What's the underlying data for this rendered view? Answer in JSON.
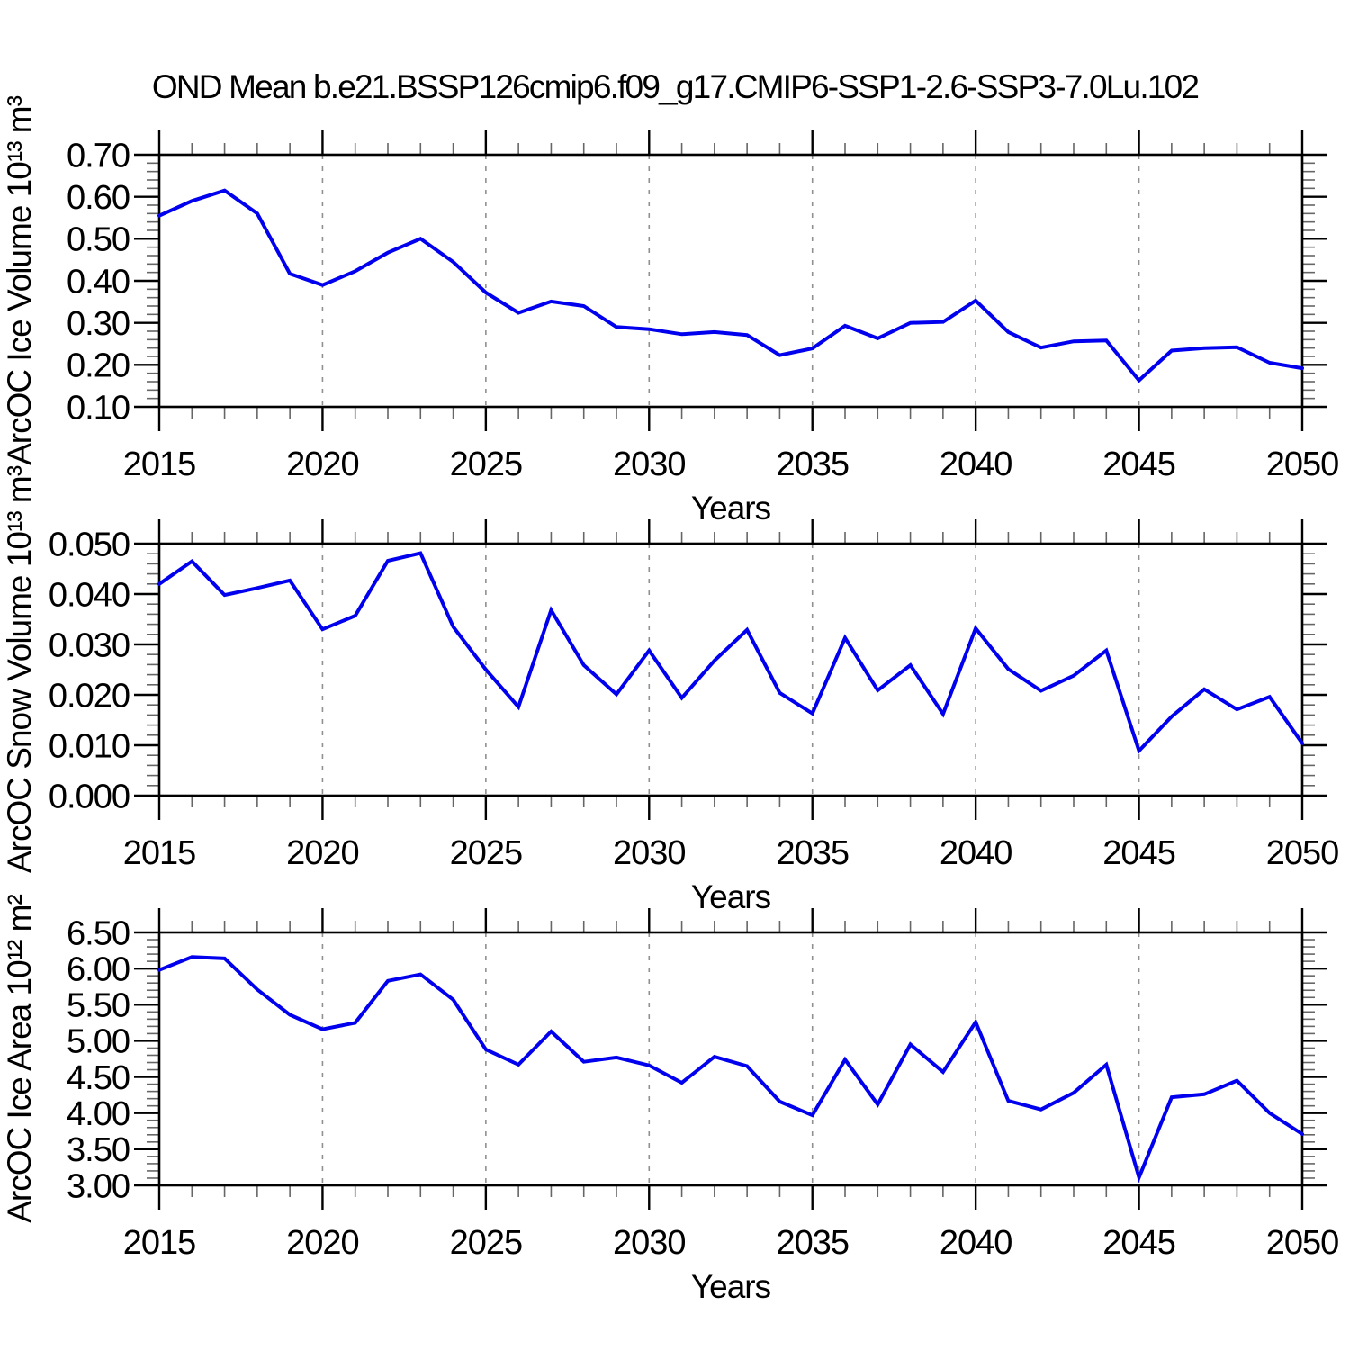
{
  "title": "OND Mean b.e21.BSSP126cmip6.f09_g17.CMIP6-SSP1-2.6-SSP3-7.0Lu.102",
  "colors": {
    "line": "#0000EE",
    "frame": "#000000",
    "major_tick": "#000000",
    "minor_tick": "#666666",
    "grid_dashed": "#909090",
    "background": "#ffffff"
  },
  "x_axis": {
    "label": "Years",
    "tick_labels": [
      "2015",
      "2020",
      "2025",
      "2030",
      "2035",
      "2040",
      "2045",
      "2050"
    ],
    "major_ticks": [
      2015,
      2020,
      2025,
      2030,
      2035,
      2040,
      2045,
      2050
    ],
    "minor_step": 1,
    "grid_years": [
      2020,
      2025,
      2030,
      2035,
      2040,
      2045
    ]
  },
  "charts": [
    {
      "id": "ice-volume-chart",
      "ylabel": "ArcOC Ice Volume 10¹³ m³",
      "ytick_labels": [
        "0.10",
        "0.20",
        "0.30",
        "0.40",
        "0.50",
        "0.60",
        "0.70"
      ],
      "yticks": [
        0.1,
        0.2,
        0.3,
        0.4,
        0.5,
        0.6,
        0.7
      ],
      "ymin": 0.1,
      "ymax": 0.7,
      "y_minor_step": 0.02
    },
    {
      "id": "snow-volume-chart",
      "ylabel": "ArcOC Snow Volume 10¹³ m³",
      "ytick_labels": [
        "0.000",
        "0.010",
        "0.020",
        "0.030",
        "0.040",
        "0.050"
      ],
      "yticks": [
        0.0,
        0.01,
        0.02,
        0.03,
        0.04,
        0.05
      ],
      "ymin": 0.0,
      "ymax": 0.05,
      "y_minor_step": 0.002
    },
    {
      "id": "ice-area-chart",
      "ylabel": "ArcOC Ice Area 10¹² m²",
      "ytick_labels": [
        "3.00",
        "3.50",
        "4.00",
        "4.50",
        "5.00",
        "5.50",
        "6.00",
        "6.50"
      ],
      "yticks": [
        3.0,
        3.5,
        4.0,
        4.5,
        5.0,
        5.5,
        6.0,
        6.5
      ],
      "ymin": 3.0,
      "ymax": 6.5,
      "y_minor_step": 0.1
    }
  ],
  "chart_data": [
    {
      "type": "line",
      "title": "OND Mean b.e21.BSSP126cmip6.f09_g17.CMIP6-SSP1-2.6-SSP3-7.0Lu.102",
      "ylabel": "ArcOC Ice Volume 10¹³ m³",
      "xlabel": "Years",
      "legend": "none",
      "grid": "vertical dashed at 5-year marks",
      "ylim": [
        0.1,
        0.7
      ],
      "xlim": [
        2015,
        2050
      ],
      "x": [
        2015,
        2016,
        2017,
        2018,
        2019,
        2020,
        2021,
        2022,
        2023,
        2024,
        2025,
        2026,
        2027,
        2028,
        2029,
        2030,
        2031,
        2032,
        2033,
        2034,
        2035,
        2036,
        2037,
        2038,
        2039,
        2040,
        2041,
        2042,
        2043,
        2044,
        2045,
        2046,
        2047,
        2048,
        2049,
        2050
      ],
      "values": [
        0.555,
        0.59,
        0.615,
        0.56,
        0.417,
        0.39,
        0.423,
        0.467,
        0.5,
        0.445,
        0.372,
        0.324,
        0.351,
        0.34,
        0.29,
        0.285,
        0.273,
        0.278,
        0.271,
        0.223,
        0.239,
        0.293,
        0.263,
        0.3,
        0.302,
        0.353,
        0.278,
        0.241,
        0.256,
        0.258,
        0.163,
        0.234,
        0.24,
        0.242,
        0.205,
        0.192
      ]
    },
    {
      "type": "line",
      "title": "OND Mean b.e21.BSSP126cmip6.f09_g17.CMIP6-SSP1-2.6-SSP3-7.0Lu.102",
      "ylabel": "ArcOC Snow Volume 10¹³ m³",
      "xlabel": "Years",
      "legend": "none",
      "grid": "vertical dashed at 5-year marks",
      "ylim": [
        0.0,
        0.05
      ],
      "xlim": [
        2015,
        2050
      ],
      "x": [
        2015,
        2016,
        2017,
        2018,
        2019,
        2020,
        2021,
        2022,
        2023,
        2024,
        2025,
        2026,
        2027,
        2028,
        2029,
        2030,
        2031,
        2032,
        2033,
        2034,
        2035,
        2036,
        2037,
        2038,
        2039,
        2040,
        2041,
        2042,
        2043,
        2044,
        2045,
        2046,
        2047,
        2048,
        2049,
        2050
      ],
      "values": [
        0.042,
        0.0465,
        0.0398,
        0.0412,
        0.0427,
        0.033,
        0.0357,
        0.0466,
        0.0481,
        0.0335,
        0.025,
        0.0176,
        0.0368,
        0.0259,
        0.0201,
        0.0288,
        0.0194,
        0.0268,
        0.0329,
        0.0204,
        0.0163,
        0.0313,
        0.0209,
        0.0259,
        0.0162,
        0.0332,
        0.0251,
        0.0208,
        0.0238,
        0.0288,
        0.0089,
        0.0157,
        0.0211,
        0.0171,
        0.0196,
        0.0104
      ]
    },
    {
      "type": "line",
      "title": "OND Mean b.e21.BSSP126cmip6.f09_g17.CMIP6-SSP1-2.6-SSP3-7.0Lu.102",
      "ylabel": "ArcOC Ice Area 10¹² m²",
      "xlabel": "Years",
      "legend": "none",
      "grid": "vertical dashed at 5-year marks",
      "ylim": [
        3.0,
        6.5
      ],
      "xlim": [
        2015,
        2050
      ],
      "x": [
        2015,
        2016,
        2017,
        2018,
        2019,
        2020,
        2021,
        2022,
        2023,
        2024,
        2025,
        2026,
        2027,
        2028,
        2029,
        2030,
        2031,
        2032,
        2033,
        2034,
        2035,
        2036,
        2037,
        2038,
        2039,
        2040,
        2041,
        2042,
        2043,
        2044,
        2045,
        2046,
        2047,
        2048,
        2049,
        2050
      ],
      "values": [
        5.98,
        6.16,
        6.14,
        5.71,
        5.36,
        5.16,
        5.25,
        5.83,
        5.92,
        5.57,
        4.88,
        4.67,
        5.13,
        4.71,
        4.77,
        4.66,
        4.42,
        4.78,
        4.65,
        4.16,
        3.97,
        4.74,
        4.12,
        4.95,
        4.57,
        5.26,
        4.17,
        4.05,
        4.28,
        4.67,
        3.11,
        4.22,
        4.26,
        4.45,
        4.0,
        3.71
      ]
    }
  ]
}
